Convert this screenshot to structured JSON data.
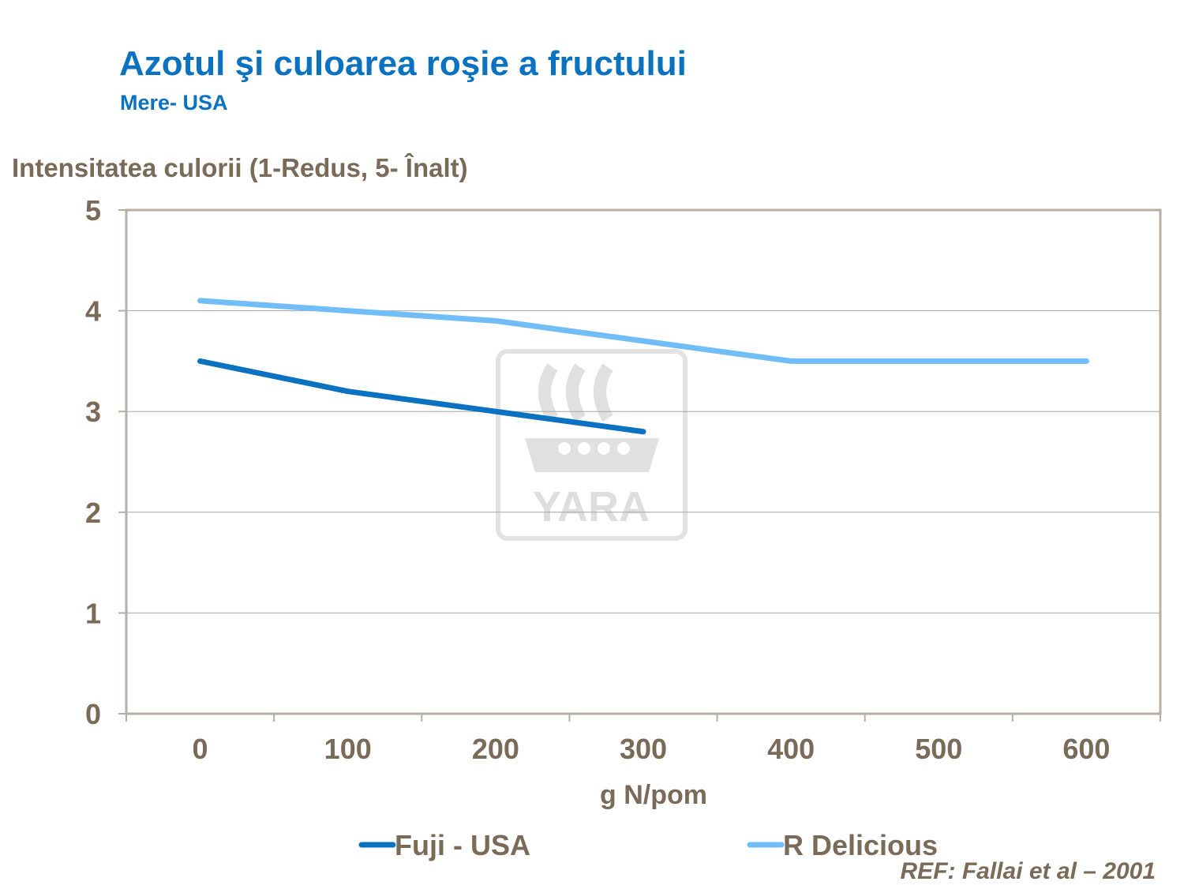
{
  "title": "Azotul şi culoarea roşie a fructului",
  "subtitle": "Mere- USA",
  "reference": "REF: Fallai et al – 2001",
  "watermark": "YARA",
  "chart_data": {
    "type": "line",
    "ylabel": "Intensitatea culorii (1-Redus, 5- Înalt)",
    "xlabel": "g N/pom",
    "categories": [
      "0",
      "100",
      "200",
      "300",
      "400",
      "500",
      "600"
    ],
    "yticks": [
      "0",
      "1",
      "2",
      "3",
      "4",
      "5"
    ],
    "ylim": [
      0,
      5
    ],
    "grid": true,
    "legend_position": "bottom",
    "series": [
      {
        "name": "Fuji - USA",
        "color": "#0a72c0",
        "values": [
          3.5,
          3.2,
          3.0,
          2.8,
          null,
          null,
          null
        ]
      },
      {
        "name": "R Delicious",
        "color": "#70bdf7",
        "values": [
          4.1,
          4.0,
          3.9,
          3.7,
          3.5,
          3.5,
          3.5
        ]
      }
    ]
  }
}
